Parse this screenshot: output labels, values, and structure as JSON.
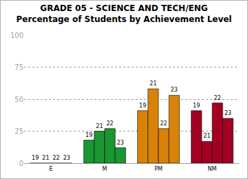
{
  "chart_data": {
    "type": "bar",
    "title": "GRADE 05 - SCIENCE AND TECH/ENG",
    "subtitle": "Percentage of Students by Achievement Level",
    "categories": [
      "E",
      "M",
      "PM",
      "NM"
    ],
    "colors": [
      "#2f5fa8",
      "#1a9632",
      "#d9820a",
      "#a30021"
    ],
    "series": [
      {
        "name": "19",
        "values": [
          0,
          18,
          41,
          41
        ]
      },
      {
        "name": "21",
        "values": [
          0,
          25,
          58,
          17
        ]
      },
      {
        "name": "22",
        "values": [
          0,
          27,
          27,
          47
        ]
      },
      {
        "name": "23",
        "values": [
          0,
          12,
          53,
          35
        ]
      }
    ],
    "ylim": [
      0,
      100
    ],
    "yticks": [
      0,
      25,
      50,
      75,
      100
    ],
    "grid": true
  }
}
